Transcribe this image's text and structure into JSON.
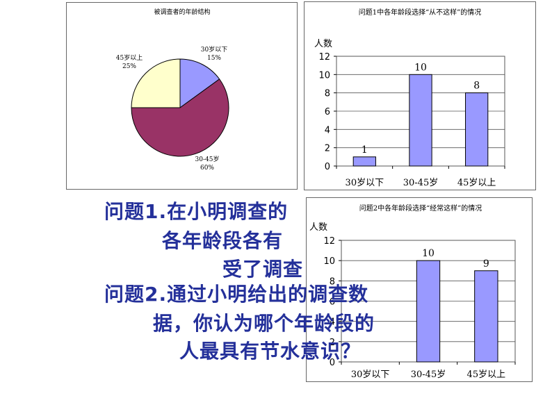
{
  "chart_data": [
    {
      "type": "pie",
      "title": "被调查者的年龄结构",
      "slices": [
        {
          "label": "30岁以下",
          "value": 15,
          "value_label": "15%",
          "color": "#9999ff"
        },
        {
          "label": "30-45岁",
          "value": 60,
          "value_label": "60%",
          "color": "#993366"
        },
        {
          "label": "45岁以上",
          "value": 25,
          "value_label": "25%",
          "color": "#ffffcc"
        }
      ]
    },
    {
      "type": "bar",
      "title": "问题1中各年龄段选择“从不这样”的情况",
      "ylabel": "人数",
      "categories": [
        "30岁以下",
        "30-45岁",
        "45岁以上"
      ],
      "values": [
        1,
        10,
        8
      ],
      "ylim": [
        0,
        12
      ],
      "yticks": [
        0,
        2,
        4,
        6,
        8,
        10,
        12
      ],
      "bar_color": "#9999ff"
    },
    {
      "type": "bar",
      "title": "问题2中各年龄段选择“经常这样”的情况",
      "ylabel": "人数",
      "categories": [
        "30岁以下",
        "30-45岁",
        "45岁以上"
      ],
      "values": [
        0,
        10,
        9
      ],
      "value_labels": [
        "",
        "10",
        "9"
      ],
      "ylim": [
        0,
        12
      ],
      "yticks": [
        0,
        2,
        4,
        6,
        8,
        10,
        12
      ],
      "bar_color": "#9999ff"
    }
  ],
  "text": {
    "q1_line1": "问题1.在小明调查的",
    "q1_line2": "各年龄段各有",
    "q1_line3": "受了调查",
    "q2_line1": "问题2.通过小明给出的调查数",
    "q2_line2": "据，你认为哪个年龄段的",
    "q2_line3": "人最具有节水意识？"
  }
}
